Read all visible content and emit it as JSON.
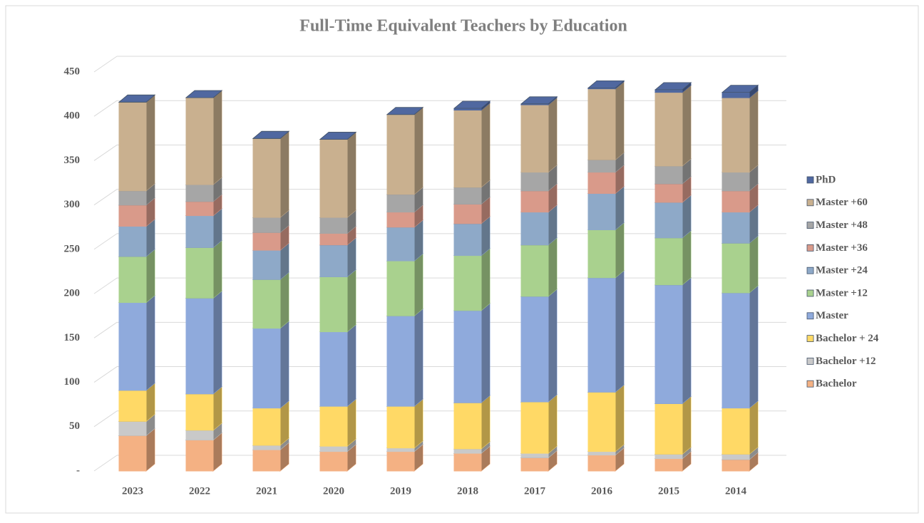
{
  "chart_data": {
    "type": "bar",
    "stacked": true,
    "title": "Full-Time Equivalent Teachers by Education",
    "categories": [
      "2023",
      "2022",
      "2021",
      "2020",
      "2019",
      "2018",
      "2017",
      "2016",
      "2015",
      "2014"
    ],
    "series": [
      {
        "name": "Bachelor",
        "color": "#f4b183",
        "values": [
          40,
          35,
          24,
          22,
          22,
          20,
          15,
          18,
          14,
          13
        ]
      },
      {
        "name": "Bachelor +12",
        "color": "#c9c9c9",
        "values": [
          16,
          11,
          5,
          6,
          4,
          5,
          5,
          4,
          5,
          6
        ]
      },
      {
        "name": "Bachelor + 24",
        "color": "#ffd966",
        "values": [
          35,
          41,
          42,
          45,
          47,
          52,
          58,
          67,
          57,
          52
        ]
      },
      {
        "name": "Master",
        "color": "#8faadc",
        "values": [
          99,
          108,
          90,
          84,
          102,
          104,
          119,
          129,
          134,
          130
        ]
      },
      {
        "name": "Master +12",
        "color": "#a9d18e",
        "values": [
          52,
          57,
          55,
          62,
          62,
          62,
          58,
          54,
          53,
          56
        ]
      },
      {
        "name": "Master +24",
        "color": "#8ea9c8",
        "values": [
          34,
          36,
          33,
          36,
          38,
          36,
          37,
          41,
          40,
          35
        ]
      },
      {
        "name": "Master +36",
        "color": "#d99a8a",
        "values": [
          24,
          16,
          20,
          13,
          17,
          22,
          24,
          24,
          21,
          24
        ]
      },
      {
        "name": "Master +48",
        "color": "#a6a6a6",
        "values": [
          16,
          19,
          17,
          18,
          20,
          19,
          21,
          14,
          20,
          21
        ]
      },
      {
        "name": "Master +60",
        "color": "#c9b08f",
        "values": [
          100,
          98,
          89,
          88,
          90,
          87,
          76,
          80,
          83,
          84
        ]
      },
      {
        "name": "PhD",
        "color": "#5068a0",
        "values": [
          0,
          0,
          0,
          0,
          0,
          2,
          1,
          1,
          3,
          6
        ]
      }
    ],
    "ylim": [
      0,
      450
    ],
    "yticks": [
      {
        "value": 0,
        "label": "-"
      },
      50,
      100,
      150,
      200,
      250,
      300,
      350,
      400,
      450
    ],
    "grid": true,
    "legend": "right"
  }
}
